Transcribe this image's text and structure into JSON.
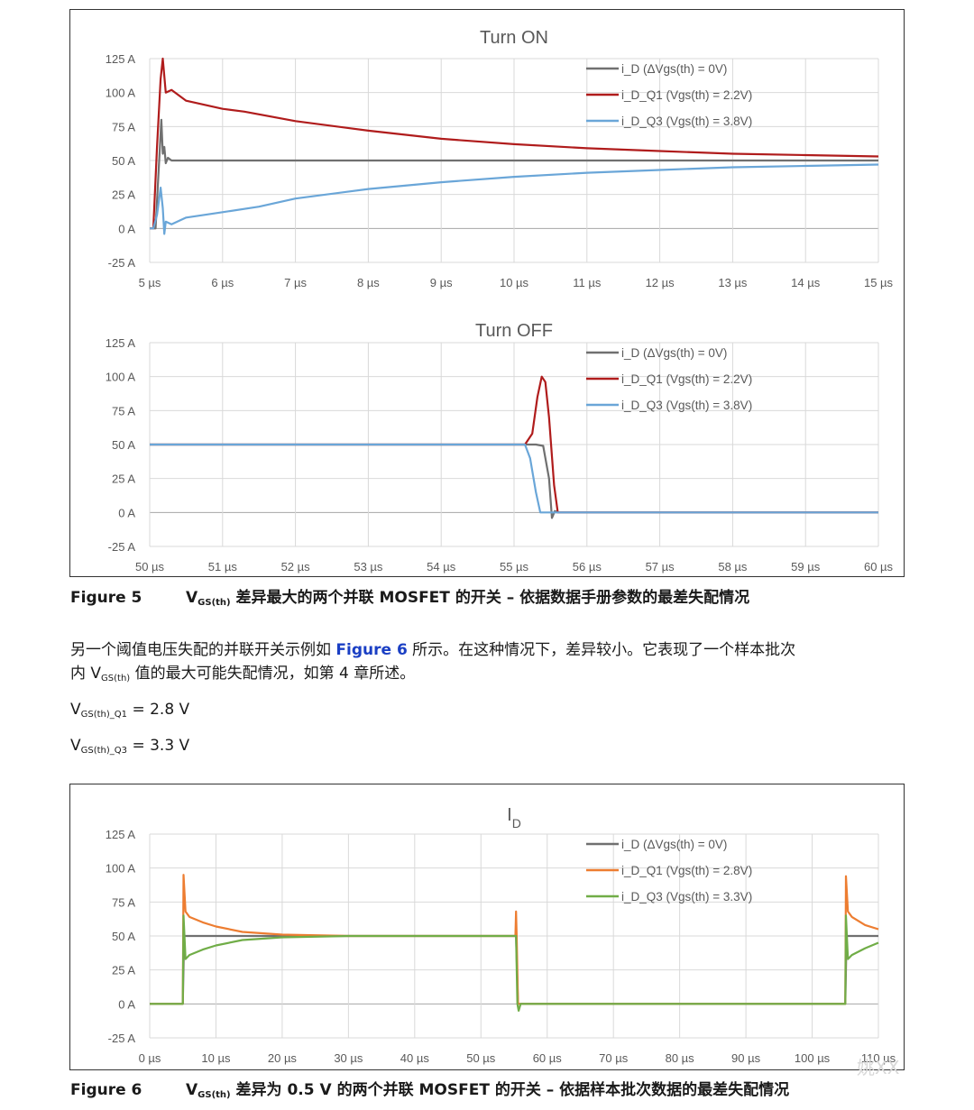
{
  "figure5": {
    "label": "Figure 5",
    "caption_pre": "V",
    "caption_sub": "GS(th)",
    "caption_post": " 差异最大的两个并联 MOSFET 的开关 – 依据数据手册参数的最差失配情况"
  },
  "paragraph": {
    "line1_pre": "另一个阈值电压失配的并联开关示例如 ",
    "line1_link": "Figure 6",
    "line1_post": " 所示。在这种情况下，差异较小。它表现了一个样本批次",
    "line2_pre": "内 V",
    "line2_sub": "GS(th)",
    "line2_post": " 值的最大可能失配情况，如第 4 章所述。"
  },
  "vq1": {
    "pre": "V",
    "sub": "GS(th)_Q1",
    "post": " = 2.8 V"
  },
  "vq3": {
    "pre": "V",
    "sub": "GS(th)_Q3",
    "post": " = 3.3 V"
  },
  "figure6": {
    "label": "Figure 6",
    "caption_pre": "V",
    "caption_sub": "GS(th)",
    "caption_post": " 差异为 0.5 V 的两个并联 MOSFET 的开关 – 依据样本批次数据的最差失配情况"
  },
  "watermark": "姚XX",
  "chart_data": [
    {
      "type": "line",
      "title": "Turn ON",
      "x_ticks": [
        "5 µs",
        "6 µs",
        "7 µs",
        "8 µs",
        "9 µs",
        "10 µs",
        "11 µs",
        "12 µs",
        "13 µs",
        "14 µs",
        "15 µs"
      ],
      "y_ticks": [
        "125 A",
        "100 A",
        "75 A",
        "50 A",
        "25 A",
        "0 A",
        "-25 A"
      ],
      "xlim": [
        5,
        15
      ],
      "ylim": [
        -25,
        125
      ],
      "grid": true,
      "legend_position": "top-right",
      "series": [
        {
          "name": "i_D (ΔVgs(th) = 0V)",
          "color": "#707070",
          "x": [
            5,
            5.08,
            5.12,
            5.16,
            5.18,
            5.2,
            5.22,
            5.25,
            5.3,
            6,
            10,
            15
          ],
          "y": [
            0,
            0,
            40,
            80,
            55,
            60,
            48,
            52,
            50,
            50,
            50,
            50
          ]
        },
        {
          "name": "i_D_Q1 (Vgs(th) = 2.2V)",
          "color": "#b01c1c",
          "x": [
            5,
            5.05,
            5.1,
            5.15,
            5.18,
            5.22,
            5.3,
            5.5,
            6,
            6.3,
            7,
            8,
            9,
            10,
            11,
            12,
            13,
            14,
            15
          ],
          "y": [
            0,
            0,
            60,
            110,
            125,
            100,
            102,
            94,
            88,
            86,
            79,
            72,
            66,
            62,
            59,
            57,
            55,
            54,
            53
          ]
        },
        {
          "name": "i_D_Q3 (Vgs(th) = 3.8V)",
          "color": "#6aa6d8",
          "x": [
            5,
            5.05,
            5.1,
            5.15,
            5.18,
            5.2,
            5.22,
            5.3,
            5.5,
            6,
            6.5,
            7,
            8,
            9,
            10,
            11,
            12,
            13,
            14,
            15
          ],
          "y": [
            0,
            0,
            10,
            30,
            15,
            -4,
            5,
            3,
            8,
            12,
            16,
            22,
            29,
            34,
            38,
            41,
            43,
            45,
            46,
            47
          ]
        }
      ]
    },
    {
      "type": "line",
      "title": "Turn OFF",
      "x_ticks": [
        "50 µs",
        "51 µs",
        "52 µs",
        "53 µs",
        "54 µs",
        "55 µs",
        "56 µs",
        "57 µs",
        "58 µs",
        "59 µs",
        "60 µs"
      ],
      "y_ticks": [
        "125 A",
        "100 A",
        "75 A",
        "50 A",
        "25 A",
        "0 A",
        "-25 A"
      ],
      "xlim": [
        50,
        60
      ],
      "ylim": [
        -25,
        125
      ],
      "grid": true,
      "legend_position": "top-right",
      "series": [
        {
          "name": "i_D (ΔVgs(th) = 0V)",
          "color": "#707070",
          "x": [
            50,
            55.3,
            55.4,
            55.48,
            55.52,
            55.56,
            55.6,
            56,
            60
          ],
          "y": [
            50,
            50,
            49,
            25,
            -4,
            1,
            0,
            0,
            0
          ]
        },
        {
          "name": "i_D_Q1 (Vgs(th) = 2.2V)",
          "color": "#b01c1c",
          "x": [
            50,
            55.15,
            55.25,
            55.32,
            55.38,
            55.43,
            55.48,
            55.55,
            55.6,
            56,
            60
          ],
          "y": [
            50,
            50,
            58,
            85,
            100,
            96,
            70,
            20,
            0,
            0,
            0
          ]
        },
        {
          "name": "i_D_Q3 (Vgs(th) = 3.8V)",
          "color": "#6aa6d8",
          "x": [
            50,
            55.15,
            55.22,
            55.3,
            55.36,
            55.4,
            56,
            60
          ],
          "y": [
            50,
            50,
            40,
            15,
            0,
            0,
            0,
            0
          ]
        }
      ]
    },
    {
      "type": "line",
      "title": "ID",
      "x_ticks": [
        "0 µs",
        "10 µs",
        "20 µs",
        "30 µs",
        "40 µs",
        "50 µs",
        "60 µs",
        "70 µs",
        "80 µs",
        "90 µs",
        "100 µs",
        "110 µs"
      ],
      "y_ticks": [
        "125 A",
        "100 A",
        "75 A",
        "50 A",
        "25 A",
        "0 A",
        "-25 A"
      ],
      "xlim": [
        0,
        110
      ],
      "ylim": [
        -25,
        125
      ],
      "grid": true,
      "legend_position": "top-right",
      "series": [
        {
          "name": "i_D (ΔVgs(th) = 0V)",
          "color": "#707070",
          "x": [
            0,
            5,
            5.2,
            55.3,
            55.6,
            105,
            105.2,
            110
          ],
          "y": [
            0,
            0,
            50,
            50,
            0,
            0,
            50,
            50
          ]
        },
        {
          "name": "i_D_Q1 (Vgs(th) = 2.8V)",
          "color": "#ed7d31",
          "x": [
            0,
            5,
            5.1,
            5.4,
            6,
            8,
            10,
            14,
            20,
            30,
            55.2,
            55.3,
            55.4,
            55.6,
            105,
            105.1,
            105.4,
            106,
            108,
            110
          ],
          "y": [
            0,
            0,
            95,
            68,
            64,
            60,
            57,
            53,
            51,
            50,
            50,
            68,
            50,
            0,
            0,
            94,
            68,
            64,
            58,
            55
          ]
        },
        {
          "name": "i_D_Q3 (Vgs(th) = 3.3V)",
          "color": "#70ad47",
          "x": [
            0,
            5,
            5.1,
            5.4,
            6,
            8,
            10,
            14,
            20,
            30,
            55.3,
            55.5,
            55.7,
            56,
            105,
            105.1,
            105.4,
            106,
            108,
            110
          ],
          "y": [
            0,
            0,
            65,
            33,
            36,
            40,
            43,
            47,
            49,
            50,
            50,
            0,
            -5,
            0,
            0,
            65,
            33,
            36,
            41,
            45
          ]
        }
      ]
    }
  ]
}
